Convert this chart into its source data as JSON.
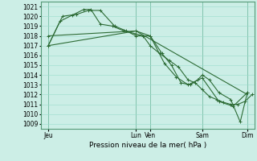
{
  "background_color": "#cceee6",
  "plot_bg_color": "#cceee6",
  "grid_color": "#99ddcc",
  "line_color": "#2d6b35",
  "title": "Pression niveau de la mer( hPa )",
  "ylim": [
    1008.5,
    1021.5
  ],
  "yticks": [
    1009,
    1010,
    1011,
    1012,
    1013,
    1014,
    1015,
    1016,
    1017,
    1018,
    1019,
    1020,
    1021
  ],
  "xlim": [
    0,
    9.0
  ],
  "xtick_pos": [
    0.3,
    4.0,
    4.6,
    6.8,
    8.7
  ],
  "xtick_labels": [
    "Jeu",
    "Lun",
    "Ven",
    "Sam",
    "Dim"
  ],
  "line1_x": [
    0.3,
    0.8,
    1.3,
    1.8,
    2.1,
    2.5,
    3.0,
    3.5,
    4.0,
    4.3,
    4.6,
    5.0,
    5.4,
    5.8,
    6.2,
    6.5,
    6.8,
    7.1,
    7.4,
    7.7,
    8.0,
    8.3,
    8.6,
    8.9
  ],
  "line1_y": [
    1017.0,
    1019.5,
    1020.1,
    1020.7,
    1020.7,
    1019.2,
    1019.0,
    1018.5,
    1018.2,
    1018.0,
    1017.0,
    1016.2,
    1015.5,
    1014.8,
    1013.5,
    1013.2,
    1012.5,
    1011.8,
    1011.5,
    1011.2,
    1011.0,
    1011.0,
    1011.3,
    1012.0
  ],
  "line2_x": [
    0.3,
    0.9,
    1.5,
    2.0,
    2.5,
    3.1,
    3.6,
    4.0,
    4.6,
    5.1,
    5.5,
    5.9,
    6.3,
    6.6,
    6.8,
    7.1,
    7.5,
    8.0,
    8.4,
    8.7
  ],
  "line2_y": [
    1017.0,
    1020.0,
    1020.2,
    1020.6,
    1020.6,
    1019.0,
    1018.5,
    1018.0,
    1018.0,
    1016.2,
    1015.0,
    1013.2,
    1013.0,
    1013.5,
    1014.0,
    1013.5,
    1012.2,
    1011.5,
    1009.2,
    1012.2
  ],
  "line3_x": [
    0.3,
    4.0,
    4.6,
    5.2,
    5.7,
    6.2,
    6.8,
    7.5,
    8.1,
    8.7
  ],
  "line3_y": [
    1018.0,
    1018.5,
    1018.0,
    1015.2,
    1013.8,
    1013.0,
    1013.7,
    1011.3,
    1010.8,
    1012.2
  ],
  "line4_x": [
    0.3,
    4.0,
    8.7
  ],
  "line4_y": [
    1017.0,
    1018.5,
    1012.0
  ]
}
